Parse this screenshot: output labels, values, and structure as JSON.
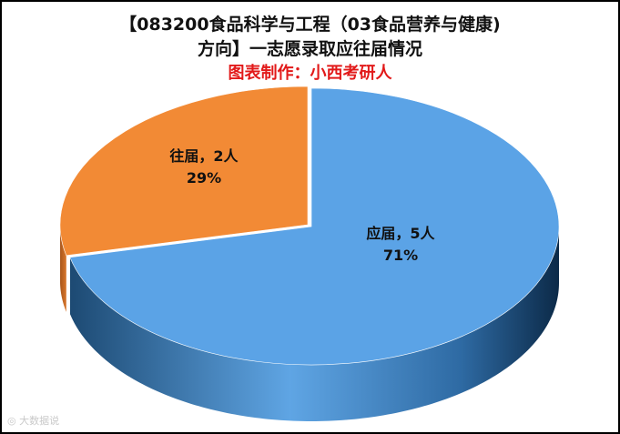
{
  "chart_data": {
    "type": "pie",
    "title_line1": "【083200食品科学与工程（03食品营养与健康)",
    "title_line2": "方向】一志愿录取应往届情况",
    "subtitle": "图表制作：小西考研人",
    "categories": [
      "应届",
      "往届"
    ],
    "values": [
      5,
      2
    ],
    "percent_labels": [
      "71%",
      "29%"
    ],
    "value_labels": [
      "应届，5人",
      "往届，2人"
    ],
    "colors": [
      "#5ba3e6",
      "#f28a35"
    ],
    "style": "3d-exploded"
  },
  "watermark": {
    "icon": "camera-icon",
    "text": "大数据说"
  },
  "colors": {
    "credit": "#e21a1a",
    "border": "#000000"
  }
}
